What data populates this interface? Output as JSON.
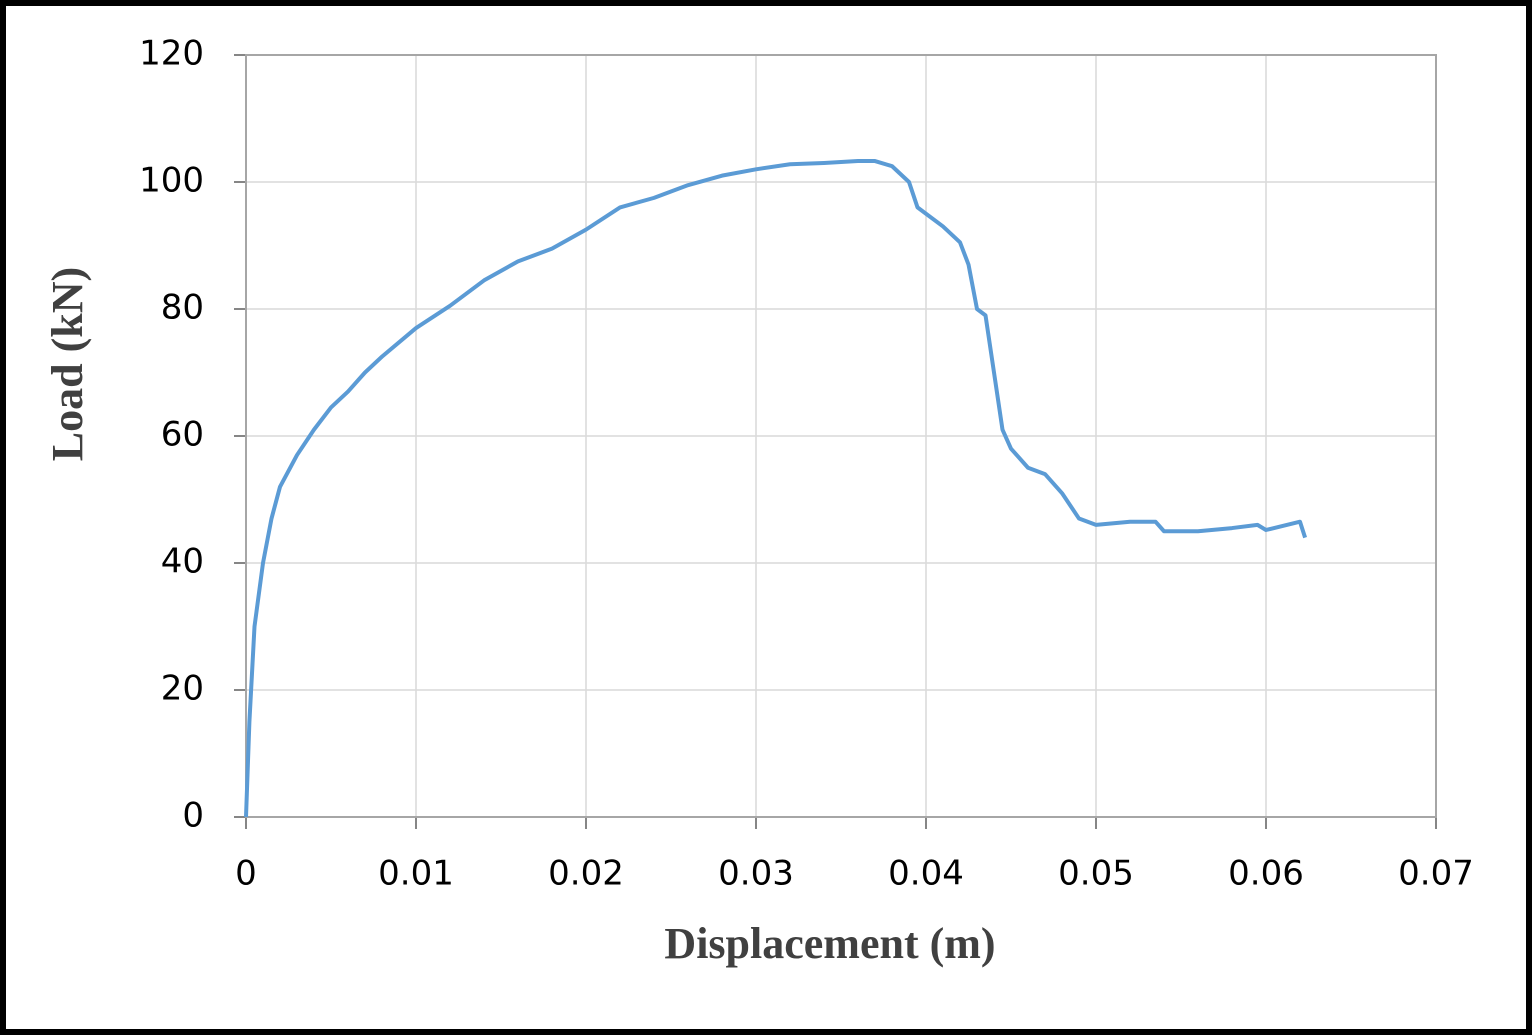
{
  "chart_data": {
    "type": "line",
    "x_label": "Displacement (m)",
    "y_label": "Load (kN)",
    "xlim": [
      0,
      0.07
    ],
    "xticks": [
      0,
      0.01,
      0.02,
      0.03,
      0.04,
      0.05,
      0.06,
      0.07
    ],
    "ylim": [
      0,
      120
    ],
    "yticks": [
      0,
      20,
      40,
      60,
      80,
      100,
      120
    ],
    "grid": true,
    "x": [
      0,
      0.0002,
      0.0005,
      0.001,
      0.0015,
      0.002,
      0.003,
      0.004,
      0.005,
      0.006,
      0.007,
      0.008,
      0.01,
      0.012,
      0.014,
      0.016,
      0.018,
      0.02,
      0.022,
      0.024,
      0.026,
      0.028,
      0.03,
      0.032,
      0.034,
      0.036,
      0.037,
      0.038,
      0.039,
      0.0395,
      0.04,
      0.041,
      0.042,
      0.0425,
      0.043,
      0.0435,
      0.044,
      0.0445,
      0.045,
      0.046,
      0.047,
      0.048,
      0.049,
      0.05,
      0.052,
      0.0535,
      0.054,
      0.056,
      0.058,
      0.0595,
      0.06,
      0.062,
      0.0623
    ],
    "series": [
      {
        "color": "#5b9bd5",
        "values": [
          0,
          15,
          30,
          40,
          47,
          52,
          57,
          61,
          64.5,
          67,
          70,
          72.5,
          77,
          80.5,
          84.5,
          87.5,
          89.5,
          92.5,
          96,
          97.5,
          99.5,
          101,
          102,
          102.8,
          103,
          103.3,
          103.3,
          102.5,
          100,
          96,
          95,
          93,
          90.5,
          87,
          80,
          79,
          70,
          61,
          58,
          55,
          54,
          51,
          47,
          46,
          46.5,
          46.5,
          45,
          45,
          45.5,
          46,
          45.2,
          46.5,
          44
        ]
      }
    ]
  }
}
